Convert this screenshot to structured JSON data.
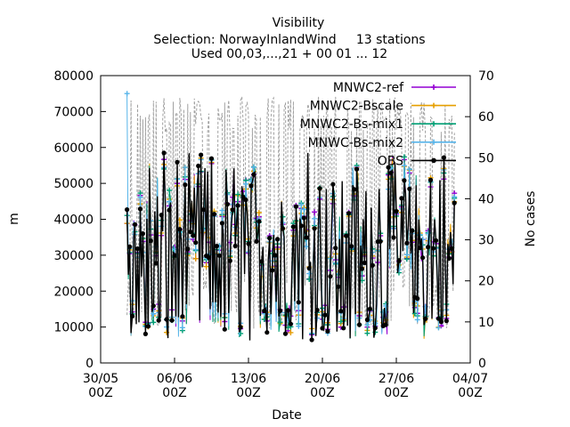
{
  "chart_data": {
    "type": "line",
    "title": "Visibility",
    "subtitle": "Selection: NorwayInlandWind     13 stations",
    "subtitle2": "Used 00,03,...,21 + 00 01 ... 12",
    "xlabel": "Date",
    "ylabel": "m",
    "y2label": "No cases",
    "x_range": [
      "2024-05-30T00:00",
      "2024-07-04T00:00"
    ],
    "ylim": [
      0,
      80000
    ],
    "y2lim": [
      0,
      70
    ],
    "x_ticks": [
      {
        "line1": "30/05",
        "line2": "00Z"
      },
      {
        "line1": "06/06",
        "line2": "00Z"
      },
      {
        "line1": "13/06",
        "line2": "00Z"
      },
      {
        "line1": "20/06",
        "line2": "00Z"
      },
      {
        "line1": "27/06",
        "line2": "00Z"
      },
      {
        "line1": "04/07",
        "line2": "00Z"
      }
    ],
    "y_ticks": [
      "0",
      "10000",
      "20000",
      "30000",
      "40000",
      "50000",
      "60000",
      "70000",
      "80000"
    ],
    "y2_ticks": [
      "0",
      "10",
      "20",
      "30",
      "40",
      "50",
      "60",
      "70"
    ],
    "grid": false,
    "legend_position": "top-right",
    "series": [
      {
        "name": "MNWC2-ref",
        "color": "#9400d3",
        "marker": "plus"
      },
      {
        "name": "MNWC2-Bscale",
        "color": "#e69f00",
        "marker": "plus"
      },
      {
        "name": "MNWC2-Bs-mix1",
        "color": "#009e73",
        "marker": "plus"
      },
      {
        "name": "MNWC-Bs-mix2",
        "color": "#56b4e9",
        "marker": "plus"
      },
      {
        "name": "OBS",
        "color": "#000000",
        "marker": "circle"
      }
    ],
    "cases_series": {
      "color": "#a0a0a0",
      "axis": "y2",
      "dash": true
    },
    "peak_values": {
      "MNWC-Bs-mix2": 75000
    }
  }
}
